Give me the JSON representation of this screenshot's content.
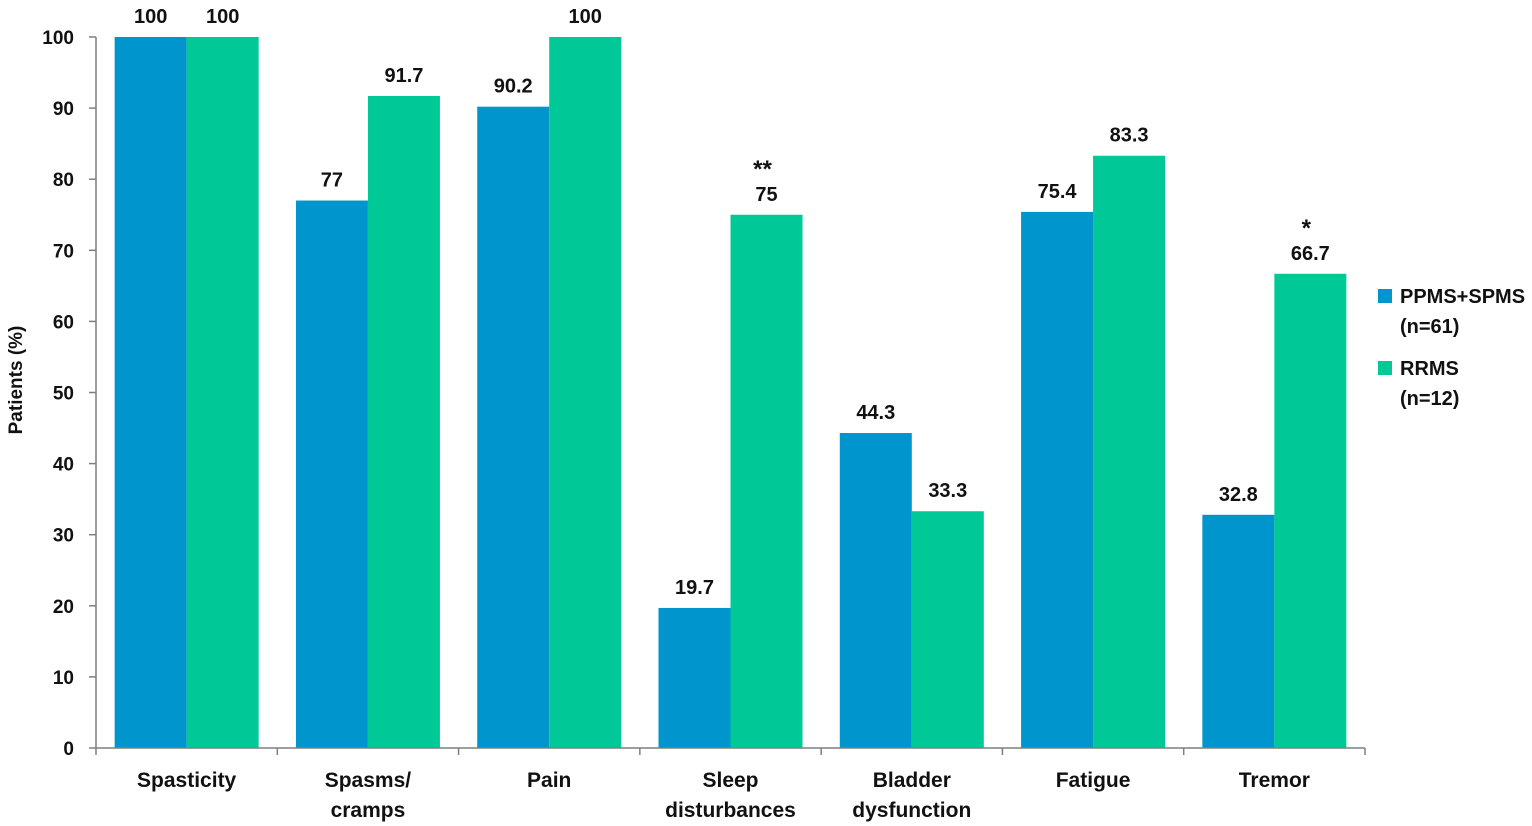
{
  "chart_data": {
    "type": "bar",
    "ylabel": "Patients (%)",
    "xlabel": "",
    "ylim": [
      0,
      100
    ],
    "yticks": [
      0,
      10,
      20,
      30,
      40,
      50,
      60,
      70,
      80,
      90,
      100
    ],
    "grid": false,
    "legend_position": "right",
    "categories": [
      [
        "Spasticity"
      ],
      [
        "Spasms/",
        "cramps"
      ],
      [
        "Pain"
      ],
      [
        "Sleep",
        "disturbances"
      ],
      [
        "Bladder",
        "dysfunction"
      ],
      [
        "Fatigue"
      ],
      [
        "Tremor"
      ]
    ],
    "series": [
      {
        "name": [
          "PPMS+SPMS",
          "(n=61)"
        ],
        "color": "#0096cd",
        "values": [
          100,
          77,
          90.2,
          19.7,
          44.3,
          75.4,
          32.8
        ]
      },
      {
        "name": [
          "RRMS",
          "(n=12)"
        ],
        "color": "#00c896",
        "values": [
          100,
          91.7,
          100,
          75,
          33.3,
          83.3,
          66.7
        ]
      }
    ],
    "annotations": [
      {
        "category_index": 3,
        "text": "**"
      },
      {
        "category_index": 6,
        "text": "*"
      }
    ]
  }
}
